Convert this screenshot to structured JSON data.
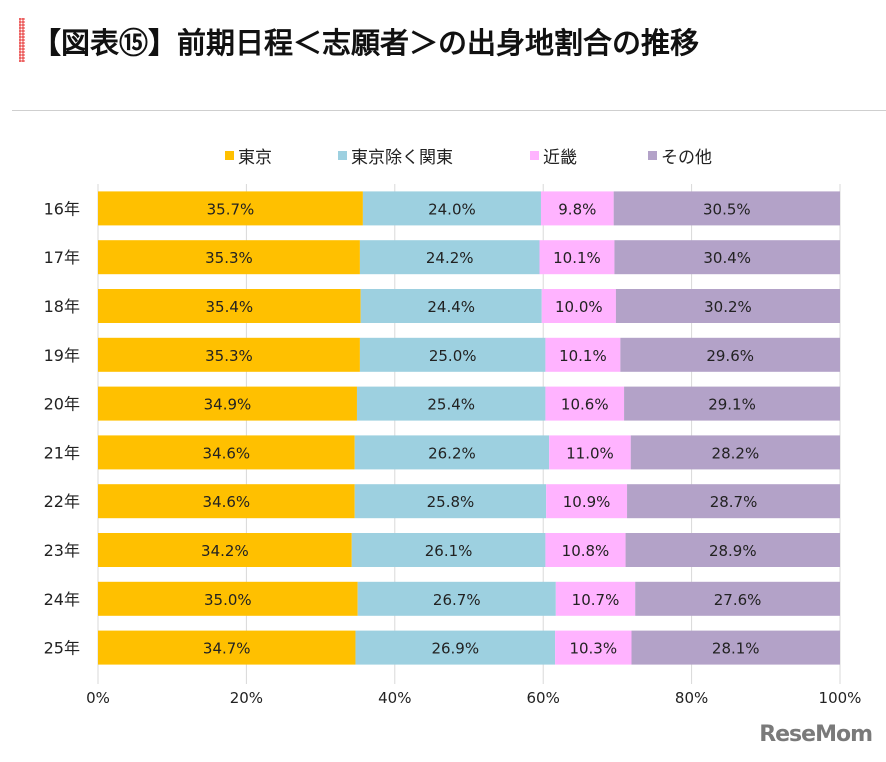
{
  "page": {
    "title": "【図表⑮】前期日程＜志願者＞の出身地割合の推移",
    "watermark": "ReseMom"
  },
  "chart_data": {
    "type": "bar",
    "orientation": "horizontal",
    "stacked": "percent",
    "title": "【図表⑮】前期日程＜志願者＞の出身地割合の推移",
    "xlabel": "",
    "ylabel": "",
    "xlim": [
      0,
      100
    ],
    "xticks": [
      "0%",
      "20%",
      "40%",
      "60%",
      "80%",
      "100%"
    ],
    "xtick_values": [
      0,
      20,
      40,
      60,
      80,
      100
    ],
    "grid": true,
    "legend_position": "top",
    "categories": [
      "16年",
      "17年",
      "18年",
      "19年",
      "20年",
      "21年",
      "22年",
      "23年",
      "24年",
      "25年"
    ],
    "series": [
      {
        "name": "東京",
        "color": "#FFC000",
        "values": [
          35.7,
          35.3,
          35.4,
          35.3,
          34.9,
          34.6,
          34.6,
          34.2,
          35.0,
          34.7
        ],
        "labels": [
          "35.7%",
          "35.3%",
          "35.4%",
          "35.3%",
          "34.9%",
          "34.6%",
          "34.6%",
          "34.2%",
          "35.0%",
          "34.7%"
        ]
      },
      {
        "name": "東京除く関東",
        "color": "#9DD0E0",
        "values": [
          24.0,
          24.2,
          24.4,
          25.0,
          25.4,
          26.2,
          25.8,
          26.1,
          26.7,
          26.9
        ],
        "labels": [
          "24.0%",
          "24.2%",
          "24.4%",
          "25.0%",
          "25.4%",
          "26.2%",
          "25.8%",
          "26.1%",
          "26.7%",
          "26.9%"
        ]
      },
      {
        "name": "近畿",
        "color": "#FFB3FF",
        "values": [
          9.8,
          10.1,
          10.0,
          10.1,
          10.6,
          11.0,
          10.9,
          10.8,
          10.7,
          10.3
        ],
        "labels": [
          "9.8%",
          "10.1%",
          "10.0%",
          "10.1%",
          "10.6%",
          "11.0%",
          "10.9%",
          "10.8%",
          "10.7%",
          "10.3%"
        ]
      },
      {
        "name": "その他",
        "color": "#B3A2C8",
        "values": [
          30.5,
          30.4,
          30.2,
          29.6,
          29.1,
          28.2,
          28.7,
          28.9,
          27.6,
          28.1
        ],
        "labels": [
          "30.5%",
          "30.4%",
          "30.2%",
          "29.6%",
          "29.1%",
          "28.2%",
          "28.7%",
          "28.9%",
          "27.6%",
          "28.1%"
        ]
      }
    ]
  }
}
